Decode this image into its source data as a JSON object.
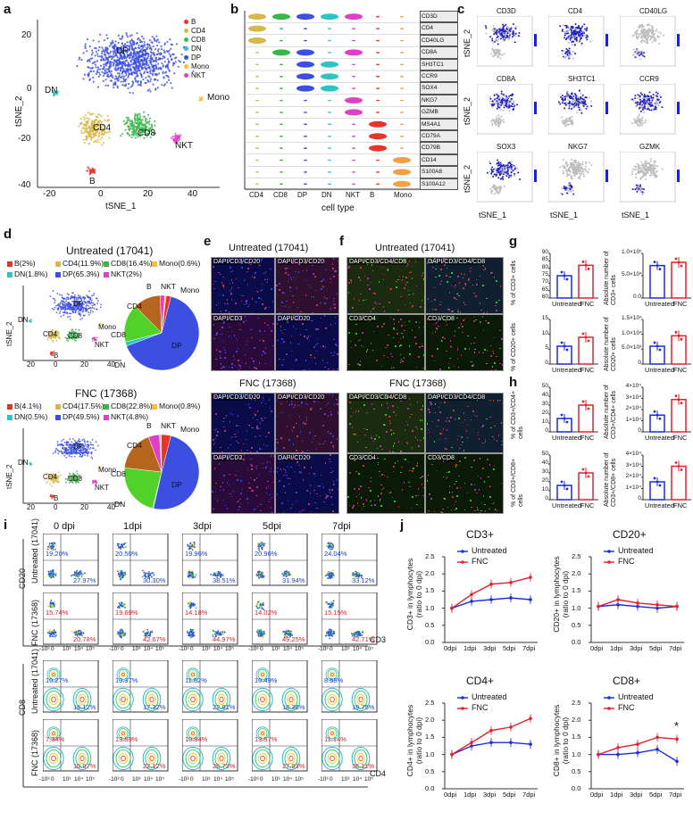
{
  "panels": {
    "a": "a",
    "b": "b",
    "c": "c",
    "d": "d",
    "e": "e",
    "f": "f",
    "g": "g",
    "h": "h",
    "i": "i",
    "j": "j"
  },
  "panel_a": {
    "legend": [
      "B",
      "CD4",
      "CD8",
      "DN",
      "DP",
      "Mono",
      "NKT"
    ],
    "legend_colors": [
      "#e8322a",
      "#d8b84a",
      "#3ab54a",
      "#2ec4c4",
      "#3c4fe0",
      "#f2c230",
      "#e040c8"
    ],
    "cluster_labels": [
      "DP",
      "DN",
      "CD4",
      "CD8",
      "NKT",
      "Mono",
      "B"
    ],
    "xlabel": "tSNE_1",
    "ylabel": "tSNE_2",
    "yticks": [
      "20",
      "0",
      "-20",
      "-40"
    ],
    "xticks": [
      "-20",
      "0",
      "20",
      "40"
    ]
  },
  "panel_b": {
    "genes": [
      "CD3D",
      "CD4",
      "CD40LG",
      "CD8A",
      "SH3TC1",
      "CCR9",
      "SOX4",
      "NKG7",
      "GZMB",
      "MS4A1",
      "CD79A",
      "CD79B",
      "CD14",
      "S100A8",
      "S100A12"
    ],
    "cell_types": [
      "CD4",
      "CD8",
      "DP",
      "DN",
      "NKT",
      "B",
      "Mono"
    ],
    "xlabel": "cell type"
  },
  "panel_c": {
    "genes": [
      "CD3D",
      "CD4",
      "CD40LG",
      "CD8A",
      "SH3TC1",
      "CCR9",
      "SOX3",
      "NKG7",
      "GZMK"
    ],
    "xlabel": "tSNE_1",
    "ylabel": "tSNE_2"
  },
  "panel_d": {
    "untreated_title": "Untreated (17041)",
    "untreated_legend": [
      "B(2%)",
      "CD4(11.9%)",
      "CD8(16.4%)",
      "Mono(0.6%)",
      "DN(1.8%)",
      "DP(65.3%)",
      "NKT(2%)"
    ],
    "fnc_title": "FNC (17368)",
    "fnc_legend": [
      "B(4.1%)",
      "CD4(17.5%)",
      "CD8(22.8%)",
      "Mono(0.8%)",
      "DN(0.5%)",
      "DP(49.5%)",
      "NKT(4.8%)"
    ],
    "pie_labels": [
      "B",
      "NKT",
      "Mono",
      "CD4",
      "CD8",
      "DN",
      "DP"
    ],
    "xlabel": "tSNE_1",
    "ylabel": "tSNE_2",
    "xticks": [
      "20",
      "0",
      "20",
      "40"
    ],
    "yticks": [
      "0",
      "20",
      "40",
      "60"
    ]
  },
  "panel_e": {
    "untreated_title": "Untreated (17041)",
    "fnc_title": "FNC (17368)",
    "labels": [
      "DAPI/CD3/CD20",
      "DAPI/CD3/CD20",
      "DAPI/CD3",
      "DAPI/CD20"
    ]
  },
  "panel_f": {
    "untreated_title": "Untreated (17041)",
    "fnc_title": "FNC (17368)",
    "labels": [
      "DAPI/CD3/CD4/CD8",
      "DAPI/CD3/CD4/CD8",
      "CD3/CD4",
      "CD3/CD8"
    ]
  },
  "panel_g": {
    "ylabels": [
      "% of CD3+ cells",
      "Absolute number of CD3+ cells",
      "% of CD20+ cells",
      "Absolute number of CD20+ cells"
    ],
    "xticks": [
      "Untreated",
      "FNC"
    ]
  },
  "panel_h": {
    "ylabels": [
      "% of CD3+/CD4+ cells",
      "Absolute number of CD3+/CD4+ cells",
      "% of CD3+/CD8+ cells",
      "Absolute number of CD3+/CD8+ cells"
    ],
    "xticks": [
      "Untreated",
      "FNC"
    ]
  },
  "panel_i": {
    "days": [
      "0 dpi",
      "1dpi",
      "3dpi",
      "5dpi",
      "7dpi"
    ],
    "row_labels": [
      "Untreated (17041)",
      "FNC (17368)",
      "Untreated (17041)",
      "FNC (17368)"
    ],
    "axis_labels": [
      "CD20",
      "CD3",
      "CD8",
      "CD4"
    ],
    "ticks": [
      "-10³",
      "0",
      "10³",
      "10⁴",
      "10⁵"
    ],
    "pct_row1_ul": [
      "19.20%",
      "20.50%",
      "19.96%",
      "20.96%",
      "24.04%"
    ],
    "pct_row1_lr": [
      "27.97%",
      "30.30%",
      "38.51%",
      "31.94%",
      "33.12%"
    ],
    "pct_row2_ul": [
      "15.74%",
      "19.69%",
      "14.18%",
      "14.02%",
      "15.15%"
    ],
    "pct_row2_lr": [
      "20.78%",
      "42.67%",
      "44.97%",
      "49.25%",
      "42.71%"
    ],
    "pct_row3_ul": [
      "10.27%",
      "10.37%",
      "11.52%",
      "10.49%",
      "8.55%"
    ],
    "pct_row3_lr": [
      "16.12%",
      "17.32%",
      "22.81%",
      "18.36%",
      "19.75%"
    ],
    "pct_row4_ul": [
      "7.34%",
      "13.59%",
      "10.94%",
      "13.57%",
      "11.14%"
    ],
    "pct_row4_lr": [
      "10.97%",
      "22.12%",
      "26.73%",
      "27.93%",
      "36.11%"
    ]
  },
  "chart_data": [
    {
      "type": "line",
      "title": "CD3+",
      "ylabel": "CD3+ in lymphocytes (ratio to 0 dpi)",
      "categories": [
        "0dpi",
        "1dpi",
        "3dpi",
        "5dpi",
        "7dpi"
      ],
      "ylim": [
        0,
        2.5
      ],
      "yticks": [
        "0.0",
        "0.5",
        "1.0",
        "1.5",
        "2.0",
        "2.5"
      ],
      "legend": "top",
      "series": [
        {
          "name": "Untreated",
          "color": "#1a2bd8",
          "values": [
            1.0,
            1.2,
            1.25,
            1.3,
            1.25
          ]
        },
        {
          "name": "FNC",
          "color": "#e3202a",
          "values": [
            1.0,
            1.4,
            1.7,
            1.75,
            1.9
          ]
        }
      ]
    },
    {
      "type": "line",
      "title": "CD20+",
      "ylabel": "CD20+ in lymphocytes (ratio to 0 dpi)",
      "categories": [
        "0dpi",
        "1dpi",
        "3dpi",
        "5dpi",
        "7dpi"
      ],
      "ylim": [
        0,
        2.5
      ],
      "yticks": [
        "0.0",
        "0.5",
        "1.0",
        "1.5",
        "2.0",
        "2.5"
      ],
      "legend": "top",
      "series": [
        {
          "name": "Untreated",
          "color": "#1a2bd8",
          "values": [
            1.05,
            1.1,
            1.05,
            1.0,
            1.05
          ]
        },
        {
          "name": "FNC",
          "color": "#e3202a",
          "values": [
            1.05,
            1.25,
            1.15,
            1.1,
            1.05
          ]
        }
      ]
    },
    {
      "type": "line",
      "title": "CD4+",
      "ylabel": "CD4+ in lymphocytes (ratio to 0 dpi)",
      "categories": [
        "0dpi",
        "1dpi",
        "3dpi",
        "5dpi",
        "7dpi"
      ],
      "ylim": [
        0,
        2.5
      ],
      "yticks": [
        "0.0",
        "0.5",
        "1.0",
        "1.5",
        "2.0",
        "2.5"
      ],
      "legend": "top",
      "series": [
        {
          "name": "Untreated",
          "color": "#1a2bd8",
          "values": [
            1.0,
            1.25,
            1.35,
            1.35,
            1.3
          ]
        },
        {
          "name": "FNC",
          "color": "#e3202a",
          "values": [
            1.0,
            1.35,
            1.7,
            1.8,
            2.05
          ]
        }
      ]
    },
    {
      "type": "line",
      "title": "CD8+",
      "ylabel": "CD8+ in lymphocytes (ratio to 0 dpi)",
      "categories": [
        "0dpi",
        "1dpi",
        "3dpi",
        "5dpi",
        "7dpi"
      ],
      "ylim": [
        0,
        2.5
      ],
      "yticks": [
        "0.0",
        "0.5",
        "1.0",
        "1.5",
        "2.0",
        "2.5"
      ],
      "legend": "top",
      "annotation": "*",
      "series": [
        {
          "name": "Untreated",
          "color": "#1a2bd8",
          "values": [
            1.0,
            1.0,
            1.05,
            1.15,
            0.8
          ]
        },
        {
          "name": "FNC",
          "color": "#e3202a",
          "values": [
            1.0,
            1.2,
            1.3,
            1.5,
            1.45
          ]
        }
      ]
    }
  ]
}
